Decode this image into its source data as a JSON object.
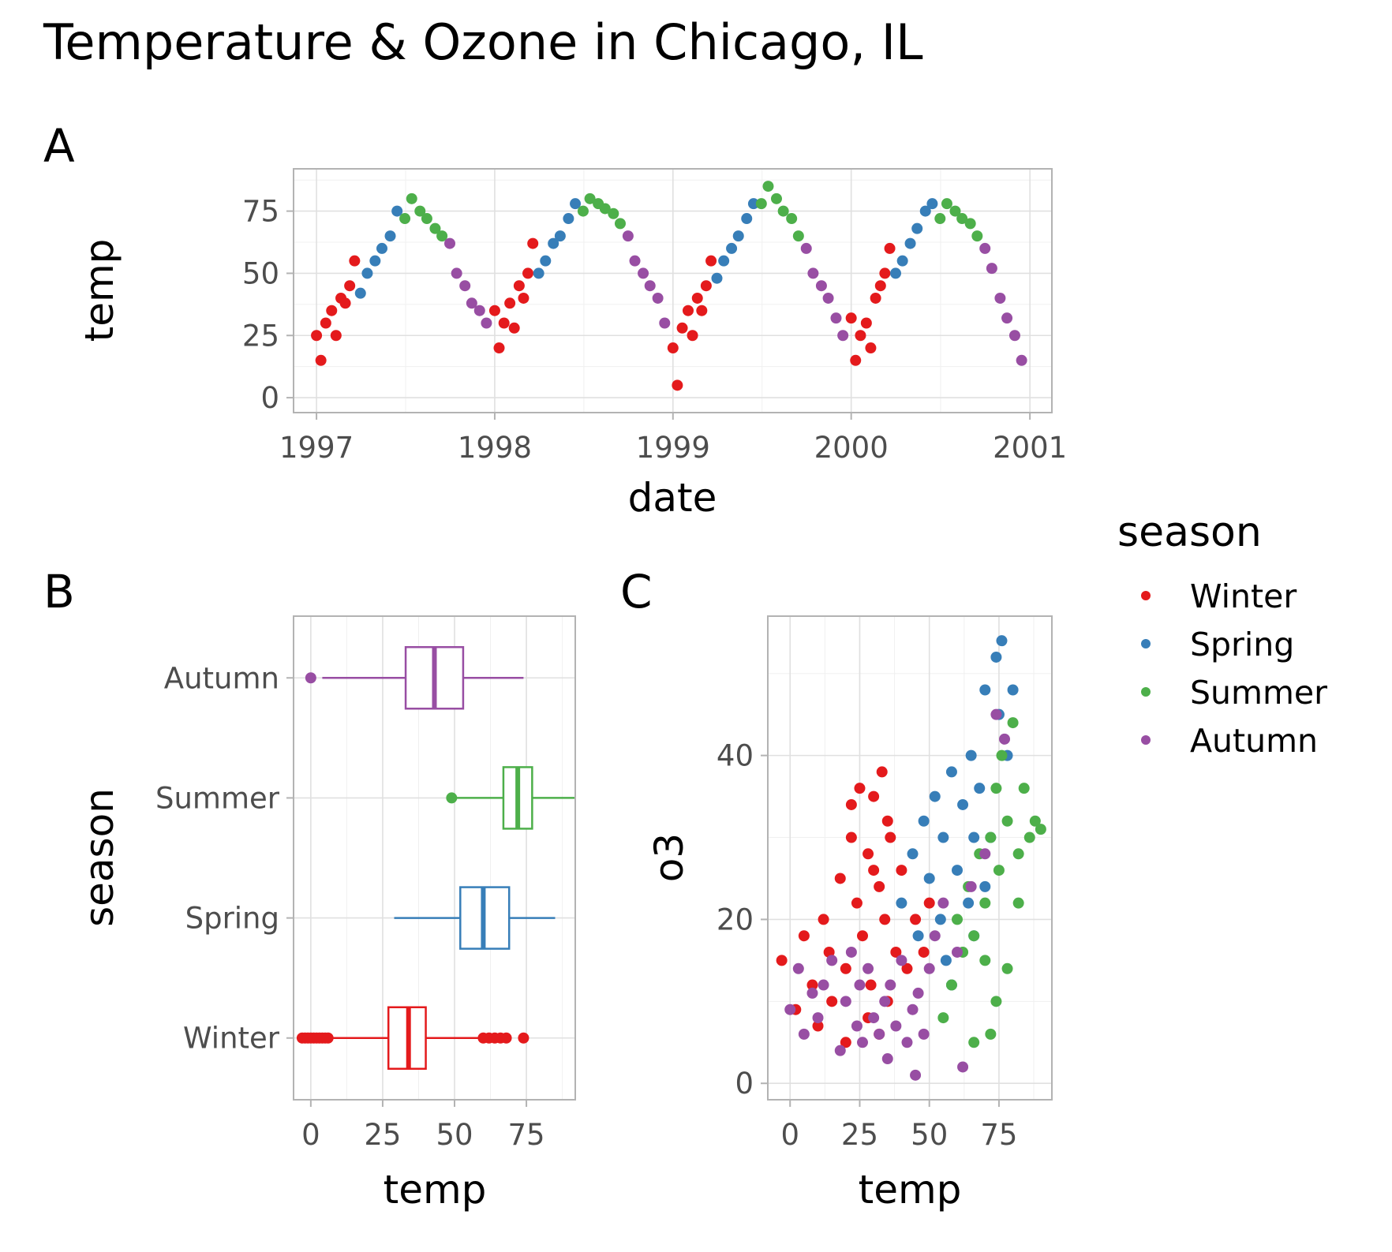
{
  "figure": {
    "title": "Temperature & Ozone in Chicago, IL"
  },
  "colors": {
    "Winter": "#E41A1C",
    "Spring": "#377EB8",
    "Summer": "#4DAF4A",
    "Autumn": "#984EA3"
  },
  "legend": {
    "title": "season",
    "items": [
      "Winter",
      "Spring",
      "Summer",
      "Autumn"
    ],
    "placement": "right"
  },
  "chart_data": [
    {
      "panel": "A",
      "type": "scatter",
      "xlabel": "date",
      "ylabel": "temp",
      "xlim": [
        "1996-11-15",
        "2001-02-15"
      ],
      "ylim": [
        -6,
        92
      ],
      "x_ticks": [
        "1997",
        "1998",
        "1999",
        "2000",
        "2001"
      ],
      "y_ticks": [
        0,
        25,
        50,
        75
      ],
      "grid": true,
      "series": [
        {
          "name": "Winter",
          "x": [
            "1997-01-01",
            "1997-01-10",
            "1997-01-20",
            "1997-02-01",
            "1997-02-10",
            "1997-02-20",
            "1997-03-01",
            "1997-03-10",
            "1997-03-20",
            "1998-01-01",
            "1998-01-10",
            "1998-01-20",
            "1998-02-01",
            "1998-02-10",
            "1998-02-20",
            "1998-03-01",
            "1998-03-10",
            "1998-03-20",
            "1999-01-01",
            "1999-01-10",
            "1999-01-20",
            "1999-02-01",
            "1999-02-10",
            "1999-02-20",
            "1999-03-01",
            "1999-03-10",
            "1999-03-20",
            "2000-01-01",
            "2000-01-10",
            "2000-01-20",
            "2000-02-01",
            "2000-02-10",
            "2000-02-20",
            "2000-03-01",
            "2000-03-10",
            "2000-03-20"
          ],
          "y": [
            25,
            15,
            30,
            35,
            25,
            40,
            38,
            45,
            55,
            35,
            20,
            30,
            38,
            28,
            45,
            40,
            50,
            62,
            20,
            5,
            28,
            35,
            25,
            40,
            35,
            45,
            55,
            32,
            15,
            25,
            30,
            20,
            40,
            45,
            50,
            60
          ]
        },
        {
          "name": "Spring",
          "x": [
            "1997-04-01",
            "1997-04-15",
            "1997-05-01",
            "1997-05-15",
            "1997-06-01",
            "1997-06-15",
            "1998-04-01",
            "1998-04-15",
            "1998-05-01",
            "1998-05-15",
            "1998-06-01",
            "1998-06-15",
            "1999-04-01",
            "1999-04-15",
            "1999-05-01",
            "1999-05-15",
            "1999-06-01",
            "1999-06-15",
            "2000-04-01",
            "2000-04-15",
            "2000-05-01",
            "2000-05-15",
            "2000-06-01",
            "2000-06-15"
          ],
          "y": [
            42,
            50,
            55,
            60,
            65,
            75,
            50,
            55,
            62,
            65,
            72,
            78,
            48,
            55,
            60,
            65,
            72,
            78,
            50,
            55,
            62,
            68,
            75,
            78
          ]
        },
        {
          "name": "Summer",
          "x": [
            "1997-07-01",
            "1997-07-15",
            "1997-08-01",
            "1997-08-15",
            "1997-09-01",
            "1997-09-15",
            "1998-07-01",
            "1998-07-15",
            "1998-08-01",
            "1998-08-15",
            "1998-09-01",
            "1998-09-15",
            "1999-07-01",
            "1999-07-15",
            "1999-08-01",
            "1999-08-15",
            "1999-09-01",
            "1999-09-15",
            "2000-07-01",
            "2000-07-15",
            "2000-08-01",
            "2000-08-15",
            "2000-09-01",
            "2000-09-15"
          ],
          "y": [
            72,
            80,
            75,
            72,
            68,
            65,
            75,
            80,
            78,
            76,
            74,
            70,
            78,
            85,
            80,
            75,
            72,
            65,
            72,
            78,
            75,
            72,
            70,
            65
          ]
        },
        {
          "name": "Autumn",
          "x": [
            "1997-10-01",
            "1997-10-15",
            "1997-11-01",
            "1997-11-15",
            "1997-12-01",
            "1997-12-15",
            "1998-10-01",
            "1998-10-15",
            "1998-11-01",
            "1998-11-15",
            "1998-12-01",
            "1998-12-15",
            "1999-10-01",
            "1999-10-15",
            "1999-11-01",
            "1999-11-15",
            "1999-12-01",
            "1999-12-15",
            "2000-10-01",
            "2000-10-15",
            "2000-11-01",
            "2000-11-15",
            "2000-12-01",
            "2000-12-15"
          ],
          "y": [
            62,
            50,
            45,
            38,
            35,
            30,
            65,
            55,
            50,
            45,
            40,
            30,
            60,
            50,
            45,
            40,
            32,
            25,
            60,
            52,
            40,
            32,
            25,
            15
          ]
        }
      ]
    },
    {
      "panel": "B",
      "type": "boxplot",
      "xlabel": "temp",
      "ylabel": "season",
      "xlim": [
        -6,
        92
      ],
      "x_ticks": [
        0,
        25,
        50,
        75
      ],
      "categories": [
        "Autumn",
        "Summer",
        "Spring",
        "Winter"
      ],
      "grid": true,
      "boxes": [
        {
          "name": "Autumn",
          "whisker_low": 4,
          "q1": 33,
          "median": 43,
          "q3": 53,
          "whisker_high": 74,
          "outliers": [
            0
          ]
        },
        {
          "name": "Summer",
          "whisker_low": 50,
          "q1": 67,
          "median": 72,
          "q3": 77,
          "whisker_high": 92,
          "outliers": [
            49
          ]
        },
        {
          "name": "Spring",
          "whisker_low": 29,
          "q1": 52,
          "median": 60,
          "q3": 69,
          "whisker_high": 85,
          "outliers": []
        },
        {
          "name": "Winter",
          "whisker_low": 7,
          "q1": 27,
          "median": 34,
          "q3": 40,
          "whisker_high": 60,
          "outliers": [
            -3,
            -2,
            -1,
            0,
            1,
            2,
            3,
            4,
            5,
            6,
            60,
            62,
            64,
            66,
            68,
            74
          ]
        }
      ]
    },
    {
      "panel": "C",
      "type": "scatter",
      "xlabel": "temp",
      "ylabel": "o3",
      "xlim": [
        -8,
        94
      ],
      "ylim": [
        -2,
        57
      ],
      "x_ticks": [
        0,
        25,
        50,
        75
      ],
      "y_ticks": [
        0,
        20,
        40
      ],
      "grid": true,
      "series": [
        {
          "name": "Winter",
          "x": [
            -3,
            2,
            5,
            8,
            10,
            12,
            14,
            18,
            20,
            22,
            24,
            25,
            26,
            28,
            29,
            30,
            32,
            33,
            34,
            35,
            36,
            38,
            40,
            42,
            45,
            48,
            50,
            15,
            20,
            28,
            32,
            22,
            30,
            35
          ],
          "y": [
            15,
            9,
            18,
            12,
            7,
            20,
            16,
            25,
            14,
            30,
            22,
            36,
            18,
            28,
            12,
            35,
            24,
            38,
            20,
            10,
            30,
            16,
            26,
            14,
            20,
            16,
            22,
            10,
            5,
            8,
            6,
            34,
            26,
            32
          ]
        },
        {
          "name": "Spring",
          "x": [
            40,
            44,
            46,
            48,
            50,
            52,
            54,
            55,
            56,
            58,
            60,
            62,
            64,
            65,
            66,
            68,
            70,
            72,
            74,
            75,
            76,
            78,
            80,
            58,
            66,
            70
          ],
          "y": [
            22,
            28,
            18,
            32,
            25,
            35,
            20,
            30,
            15,
            38,
            26,
            34,
            22,
            40,
            30,
            36,
            48,
            30,
            52,
            45,
            54,
            40,
            48,
            12,
            18,
            24
          ]
        },
        {
          "name": "Summer",
          "x": [
            55,
            58,
            60,
            62,
            64,
            66,
            68,
            70,
            72,
            74,
            75,
            76,
            78,
            80,
            82,
            84,
            86,
            88,
            90,
            70,
            74,
            78,
            82,
            66,
            72
          ],
          "y": [
            8,
            12,
            20,
            16,
            24,
            18,
            28,
            22,
            30,
            36,
            26,
            40,
            32,
            44,
            28,
            36,
            30,
            32,
            31,
            15,
            10,
            14,
            22,
            5,
            6
          ]
        },
        {
          "name": "Autumn",
          "x": [
            0,
            3,
            5,
            8,
            10,
            12,
            15,
            18,
            20,
            22,
            24,
            25,
            26,
            28,
            30,
            32,
            34,
            35,
            36,
            38,
            40,
            42,
            44,
            45,
            46,
            48,
            50,
            52,
            55,
            60,
            62,
            65,
            70,
            74,
            77
          ],
          "y": [
            9,
            14,
            6,
            11,
            8,
            12,
            15,
            4,
            10,
            16,
            7,
            12,
            5,
            14,
            8,
            6,
            10,
            3,
            12,
            7,
            15,
            5,
            9,
            1,
            11,
            6,
            14,
            18,
            22,
            16,
            2,
            24,
            28,
            45,
            42
          ]
        }
      ]
    }
  ]
}
